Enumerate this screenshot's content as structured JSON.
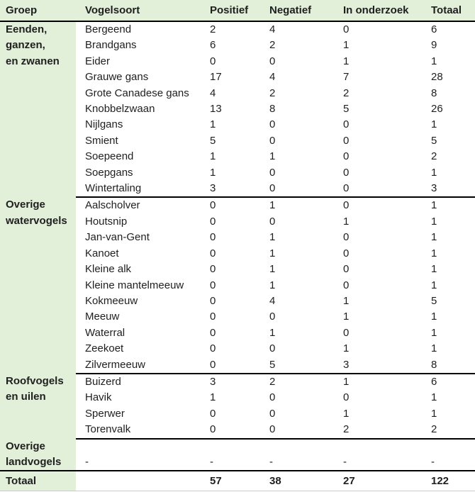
{
  "colors": {
    "group_bg": "#e2efd9",
    "rule": "#000000",
    "text": "#1f1f1f"
  },
  "table": {
    "columns": [
      "Groep",
      "Vogelsoort",
      "Positief",
      "Negatief",
      "In onderzoek",
      "Totaal"
    ],
    "groups": [
      {
        "label": "Eenden,\nganzen,\nen zwanen",
        "rows": [
          {
            "species": "Bergeend",
            "positief": "2",
            "negatief": "4",
            "in_onderzoek": "0",
            "totaal": "6"
          },
          {
            "species": "Brandgans",
            "positief": "6",
            "negatief": "2",
            "in_onderzoek": "1",
            "totaal": "9"
          },
          {
            "species": "Eider",
            "positief": "0",
            "negatief": "0",
            "in_onderzoek": "1",
            "totaal": "1"
          },
          {
            "species": "Grauwe gans",
            "positief": "17",
            "negatief": "4",
            "in_onderzoek": "7",
            "totaal": "28"
          },
          {
            "species": "Grote Canadese gans",
            "positief": "4",
            "negatief": "2",
            "in_onderzoek": "2",
            "totaal": "8"
          },
          {
            "species": "Knobbelzwaan",
            "positief": "13",
            "negatief": "8",
            "in_onderzoek": "5",
            "totaal": "26"
          },
          {
            "species": "Nijlgans",
            "positief": "1",
            "negatief": "0",
            "in_onderzoek": "0",
            "totaal": "1"
          },
          {
            "species": "Smient",
            "positief": "5",
            "negatief": "0",
            "in_onderzoek": "0",
            "totaal": "5"
          },
          {
            "species": "Soepeend",
            "positief": "1",
            "negatief": "1",
            "in_onderzoek": "0",
            "totaal": "2"
          },
          {
            "species": "Soepgans",
            "positief": "1",
            "negatief": "0",
            "in_onderzoek": "0",
            "totaal": "1"
          },
          {
            "species": "Wintertaling",
            "positief": "3",
            "negatief": "0",
            "in_onderzoek": "0",
            "totaal": "3"
          }
        ]
      },
      {
        "label": "Overige\nwatervogels",
        "rows": [
          {
            "species": "Aalscholver",
            "positief": "0",
            "negatief": "1",
            "in_onderzoek": "0",
            "totaal": "1"
          },
          {
            "species": "Houtsnip",
            "positief": "0",
            "negatief": "0",
            "in_onderzoek": "1",
            "totaal": "1"
          },
          {
            "species": "Jan-van-Gent",
            "positief": "0",
            "negatief": "1",
            "in_onderzoek": "0",
            "totaal": "1"
          },
          {
            "species": "Kanoet",
            "positief": "0",
            "negatief": "1",
            "in_onderzoek": "0",
            "totaal": "1"
          },
          {
            "species": "Kleine alk",
            "positief": "0",
            "negatief": "1",
            "in_onderzoek": "0",
            "totaal": "1"
          },
          {
            "species": "Kleine mantelmeeuw",
            "positief": "0",
            "negatief": "1",
            "in_onderzoek": "0",
            "totaal": "1"
          },
          {
            "species": "Kokmeeuw",
            "positief": "0",
            "negatief": "4",
            "in_onderzoek": "1",
            "totaal": "5"
          },
          {
            "species": "Meeuw",
            "positief": "0",
            "negatief": "0",
            "in_onderzoek": "1",
            "totaal": "1"
          },
          {
            "species": "Waterral",
            "positief": "0",
            "negatief": "1",
            "in_onderzoek": "0",
            "totaal": "1"
          },
          {
            "species": "Zeekoet",
            "positief": "0",
            "negatief": "0",
            "in_onderzoek": "1",
            "totaal": "1"
          },
          {
            "species": "Zilvermeeuw",
            "positief": "0",
            "negatief": "5",
            "in_onderzoek": "3",
            "totaal": "8"
          }
        ]
      },
      {
        "label": "Roofvogels\nen uilen",
        "rows": [
          {
            "species": "Buizerd",
            "positief": "3",
            "negatief": "2",
            "in_onderzoek": "1",
            "totaal": "6"
          },
          {
            "species": "Havik",
            "positief": "1",
            "negatief": "0",
            "in_onderzoek": "0",
            "totaal": "1"
          },
          {
            "species": "Sperwer",
            "positief": "0",
            "negatief": "0",
            "in_onderzoek": "1",
            "totaal": "1"
          },
          {
            "species": "Torenvalk",
            "positief": "0",
            "negatief": "0",
            "in_onderzoek": "2",
            "totaal": "2"
          }
        ]
      },
      {
        "label": "Overige\nlandvogels",
        "align": "bottom",
        "rows": [
          {
            "species": "-",
            "positief": "-",
            "negatief": "-",
            "in_onderzoek": "-",
            "totaal": "-"
          }
        ]
      }
    ],
    "total_row": {
      "label": "Totaal",
      "species": "",
      "positief": "57",
      "negatief": "38",
      "in_onderzoek": "27",
      "totaal": "122"
    }
  }
}
